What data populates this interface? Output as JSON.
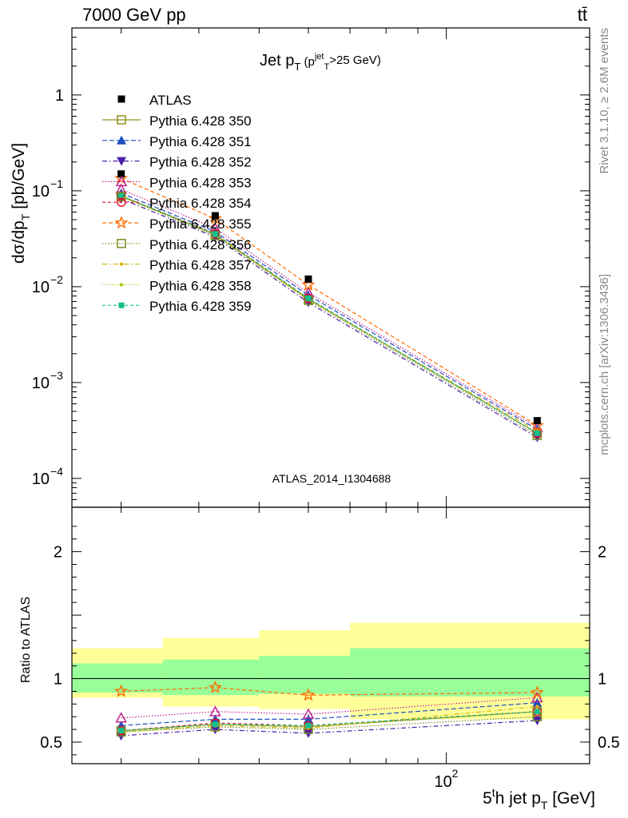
{
  "header": {
    "left": "7000 GeV pp",
    "right": "tt̄"
  },
  "side_text": {
    "top": "Rivet 3.1.10, ≥ 2.6M events",
    "bottom": "mcplots.cern.ch [arXiv:1306.3436]"
  },
  "chart_data": {
    "type": "scatter",
    "title": "Jet p_T (p_T^jet>25 GeV)",
    "title_parts": {
      "main": "Jet p",
      "sub": "T",
      "paren_open": "(p",
      "sup": "jet",
      "paren_sub": "T",
      "rest": ">25 GeV)"
    },
    "xlabel": "5^th jet p_T [GeV]",
    "xlabel_parts": {
      "lead": "5",
      "sup": "t",
      "mid": "h jet p",
      "sub": "T",
      "unit": "[GeV]"
    },
    "ylabel": "dσ/dp_T [pb/GeV]",
    "ylabel_parts": {
      "main": "dσ/dp",
      "sub": "T",
      "unit": "[pb/GeV]"
    },
    "ratio_ylabel": "Ratio to ATLAS",
    "watermark": "ATLAS_2014_I1304688",
    "x_scale": "log",
    "xlim": [
      25,
      170
    ],
    "ylim": [
      5e-05,
      5
    ],
    "y_scale": "log",
    "ratio_ylim": [
      0.33,
      2.35
    ],
    "x_ticks": [
      {
        "value": 100,
        "label": "10^2"
      }
    ],
    "y_ticks": [
      {
        "value": 1,
        "label": "1"
      },
      {
        "value": 0.1,
        "label": "10^-1"
      },
      {
        "value": 0.01,
        "label": "10^-2"
      },
      {
        "value": 0.001,
        "label": "10^-3"
      },
      {
        "value": 0.0001,
        "label": "10^-4"
      }
    ],
    "ratio_ticks": [
      {
        "value": 0.5,
        "label": "0.5"
      },
      {
        "value": 1,
        "label": "1"
      },
      {
        "value": 2,
        "label": "2"
      }
    ],
    "x": [
      30,
      42.5,
      60,
      140
    ],
    "bins": [
      [
        25,
        35
      ],
      [
        35,
        50
      ],
      [
        50,
        70
      ],
      [
        70,
        170
      ]
    ],
    "data": {
      "name": "ATLAS",
      "values": [
        0.15,
        0.055,
        0.012,
        0.0004
      ],
      "band_inner": [
        [
          0.89,
          1.12
        ],
        [
          0.87,
          1.15
        ],
        [
          0.88,
          1.18
        ],
        [
          0.86,
          1.24
        ]
      ],
      "band_outer": [
        [
          0.85,
          1.24
        ],
        [
          0.78,
          1.32
        ],
        [
          0.76,
          1.38
        ],
        [
          0.68,
          1.44
        ]
      ]
    },
    "series": [
      {
        "name": "Pythia 6.428 350",
        "color": "#8f8f1f",
        "marker": "square-open",
        "dash": "none",
        "ratio": [
          0.59,
          0.64,
          0.62,
          0.74
        ]
      },
      {
        "name": "Pythia 6.428 351",
        "color": "#1f4fbf",
        "marker": "triangle-up",
        "dash": "6,3",
        "ratio": [
          0.63,
          0.68,
          0.68,
          0.81
        ]
      },
      {
        "name": "Pythia 6.428 352",
        "color": "#4b1fa8",
        "marker": "triangle-down",
        "dash": "6,3,1.5,3",
        "ratio": [
          0.55,
          0.6,
          0.57,
          0.67
        ]
      },
      {
        "name": "Pythia 6.428 353",
        "color": "#c0248f",
        "marker": "triangle-open",
        "dash": "1.5,2",
        "ratio": [
          0.69,
          0.74,
          0.72,
          0.85
        ]
      },
      {
        "name": "Pythia 6.428 354",
        "color": "#e8102e",
        "marker": "circle-open",
        "dash": "4,3",
        "ratio": [
          0.59,
          0.65,
          0.63,
          0.74
        ]
      },
      {
        "name": "Pythia 6.428 355",
        "color": "#ff6a00",
        "marker": "star-open",
        "dash": "5,3",
        "ratio": [
          0.9,
          0.93,
          0.87,
          0.89
        ]
      },
      {
        "name": "Pythia 6.428 356",
        "color": "#7a8c1f",
        "marker": "square-open",
        "dash": "1.5,2",
        "ratio": [
          0.58,
          0.62,
          0.6,
          0.7
        ]
      },
      {
        "name": "Pythia 6.428 357",
        "color": "#d4b30e",
        "marker": "dot",
        "dash": "6,3,1.5,3",
        "ratio": [
          0.58,
          0.63,
          0.61,
          0.78
        ]
      },
      {
        "name": "Pythia 6.428 358",
        "color": "#a8cc10",
        "marker": "dot",
        "dash": "1,2",
        "ratio": [
          0.58,
          0.64,
          0.62,
          0.74
        ]
      },
      {
        "name": "Pythia 6.428 359",
        "color": "#12c08a",
        "marker": "square",
        "dash": "4,3",
        "ratio": [
          0.59,
          0.64,
          0.63,
          0.74
        ]
      }
    ],
    "grid": false,
    "legend_position": "top-left"
  }
}
